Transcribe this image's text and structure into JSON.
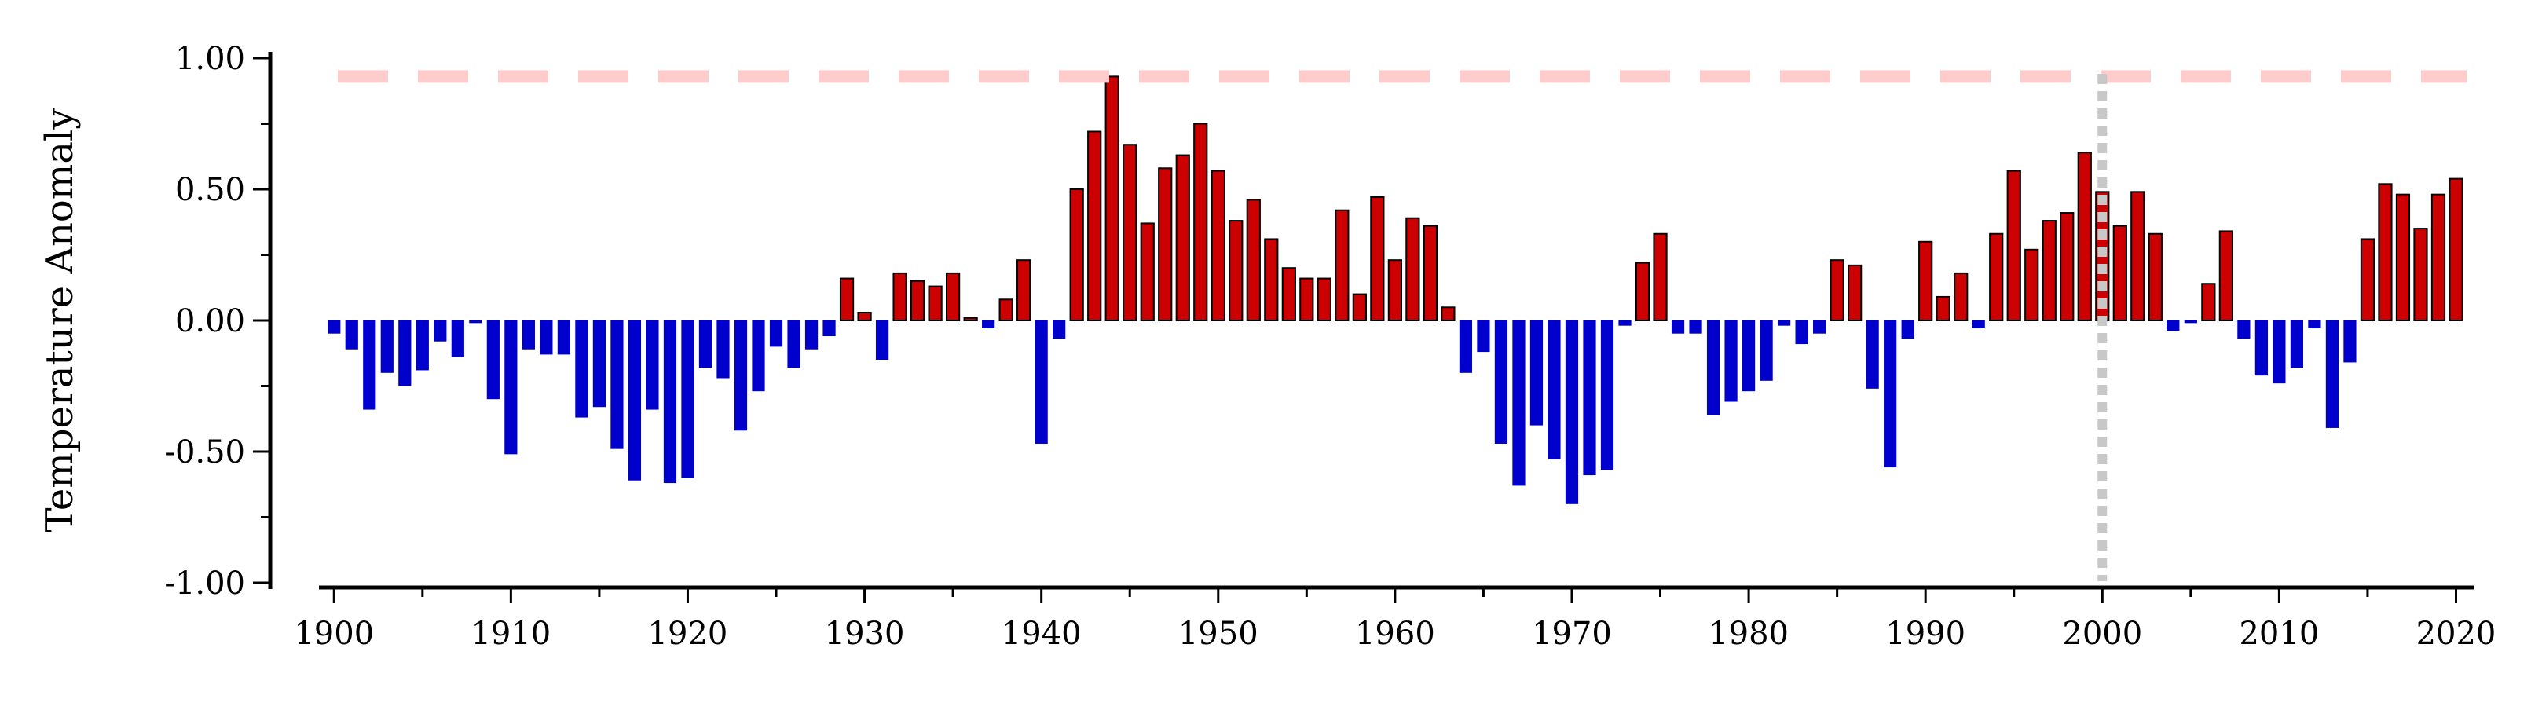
{
  "chart_data": {
    "type": "bar",
    "ylabel": "Temperature Anomaly",
    "xlabel": "",
    "title": "",
    "ylim": [
      -1.0,
      1.0
    ],
    "xlim": [
      1899.5,
      2020.6
    ],
    "grid": false,
    "legend": "none",
    "y_ticks": [
      -1.0,
      -0.5,
      0.0,
      0.5,
      1.0
    ],
    "y_tick_labels": [
      "-1.00",
      "-0.50",
      "0.00",
      "0.50",
      "1.00"
    ],
    "x_ticks": [
      1900,
      1910,
      1920,
      1930,
      1940,
      1950,
      1960,
      1970,
      1980,
      1990,
      2000,
      2010,
      2020
    ],
    "x_tick_labels": [
      "1900",
      "1910",
      "1920",
      "1930",
      "1940",
      "1950",
      "1960",
      "1970",
      "1980",
      "1990",
      "2000",
      "2010",
      "2020"
    ],
    "colors": {
      "positive": "#cc0000",
      "negative": "#0000cc",
      "reference_line": "#ffcccc",
      "vertical_marker": "#c8c8c8"
    },
    "reference_line": {
      "y": 0.93
    },
    "vertical_marker": {
      "x": 2000
    },
    "x": [
      1900,
      1901,
      1902,
      1903,
      1904,
      1905,
      1906,
      1907,
      1908,
      1909,
      1910,
      1911,
      1912,
      1913,
      1914,
      1915,
      1916,
      1917,
      1918,
      1919,
      1920,
      1921,
      1922,
      1923,
      1924,
      1925,
      1926,
      1927,
      1928,
      1929,
      1930,
      1931,
      1932,
      1933,
      1934,
      1935,
      1936,
      1937,
      1938,
      1939,
      1940,
      1941,
      1942,
      1943,
      1944,
      1945,
      1946,
      1947,
      1948,
      1949,
      1950,
      1951,
      1952,
      1953,
      1954,
      1955,
      1956,
      1957,
      1958,
      1959,
      1960,
      1961,
      1962,
      1963,
      1964,
      1965,
      1966,
      1967,
      1968,
      1969,
      1970,
      1971,
      1972,
      1973,
      1974,
      1975,
      1976,
      1977,
      1978,
      1979,
      1980,
      1981,
      1982,
      1983,
      1984,
      1985,
      1986,
      1987,
      1988,
      1989,
      1990,
      1991,
      1992,
      1993,
      1994,
      1995,
      1996,
      1997,
      1998,
      1999,
      2000,
      2001,
      2002,
      2003,
      2004,
      2005,
      2006,
      2007,
      2008,
      2009,
      2010,
      2011,
      2012,
      2013,
      2014,
      2015,
      2016,
      2017,
      2018,
      2019,
      2020
    ],
    "values": [
      -0.05,
      -0.11,
      -0.34,
      -0.2,
      -0.25,
      -0.19,
      -0.08,
      -0.14,
      -0.01,
      -0.3,
      -0.51,
      -0.11,
      -0.13,
      -0.13,
      -0.37,
      -0.33,
      -0.49,
      -0.61,
      -0.34,
      -0.62,
      -0.6,
      -0.18,
      -0.22,
      -0.42,
      -0.27,
      -0.1,
      -0.18,
      -0.11,
      -0.06,
      0.16,
      0.03,
      -0.15,
      0.18,
      0.15,
      0.13,
      0.18,
      0.01,
      -0.03,
      0.08,
      0.23,
      -0.47,
      -0.07,
      0.5,
      0.72,
      0.93,
      0.67,
      0.37,
      0.58,
      0.63,
      0.75,
      0.57,
      0.38,
      0.46,
      0.31,
      0.2,
      0.16,
      0.16,
      0.42,
      0.1,
      0.47,
      0.23,
      0.39,
      0.36,
      0.05,
      -0.2,
      -0.12,
      -0.47,
      -0.63,
      -0.4,
      -0.53,
      -0.7,
      -0.59,
      -0.57,
      -0.02,
      0.22,
      0.33,
      -0.05,
      -0.05,
      -0.36,
      -0.31,
      -0.27,
      -0.23,
      -0.02,
      -0.09,
      -0.05,
      0.23,
      0.21,
      -0.26,
      -0.56,
      -0.07,
      0.3,
      0.09,
      0.18,
      -0.03,
      0.33,
      0.57,
      0.27,
      0.38,
      0.41,
      0.64,
      0.49,
      0.36,
      0.49,
      0.33,
      -0.04,
      -0.01,
      0.14,
      0.34,
      -0.07,
      -0.21,
      -0.24,
      -0.18,
      -0.03,
      -0.41,
      -0.16,
      0.31,
      0.52,
      0.48,
      0.35,
      0.48,
      0.54
    ]
  }
}
